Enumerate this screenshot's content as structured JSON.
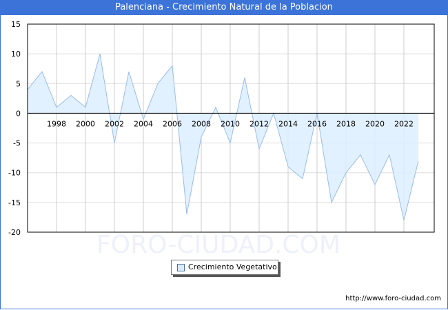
{
  "header": {
    "title": "Palenciana - Crecimiento Natural de la Poblacion"
  },
  "legend": {
    "label": "Crecimiento Vegetativo",
    "swatch_color": "#ddeeff"
  },
  "footer": {
    "url": "http://www.foro-ciudad.com"
  },
  "watermark": "FORO-CIUDAD.COM",
  "colors": {
    "title_bar": "#3b73d8",
    "line": "#99bbee",
    "fill": "#ddeeff",
    "grid": "#dddddd"
  },
  "chart_data": {
    "type": "area",
    "title": "Palenciana - Crecimiento Natural de la Poblacion",
    "xlabel": "",
    "ylabel": "",
    "ylim": [
      -20,
      15
    ],
    "yticks": [
      15,
      10,
      5,
      0,
      -5,
      -10,
      -15,
      -20
    ],
    "xtick_labels": [
      "1998",
      "2000",
      "2002",
      "2004",
      "2006",
      "2008",
      "2010",
      "2012",
      "2014",
      "2016",
      "2018",
      "2020",
      "2022"
    ],
    "grid": true,
    "legend_position": "bottom-center",
    "series": [
      {
        "name": "Crecimiento Vegetativo",
        "x": [
          1996,
          1997,
          1998,
          1999,
          2000,
          2001,
          2002,
          2003,
          2004,
          2005,
          2006,
          2007,
          2008,
          2009,
          2010,
          2011,
          2012,
          2013,
          2014,
          2015,
          2016,
          2017,
          2018,
          2019,
          2020,
          2021,
          2022,
          2023
        ],
        "values": [
          4,
          7,
          1,
          3,
          1,
          10,
          -5,
          7,
          -1,
          5,
          8,
          -17,
          -4,
          1,
          -5,
          6,
          -6,
          0,
          -9,
          -11,
          0,
          -15,
          -10,
          -7,
          -12,
          -7,
          -18,
          -8
        ]
      }
    ]
  }
}
